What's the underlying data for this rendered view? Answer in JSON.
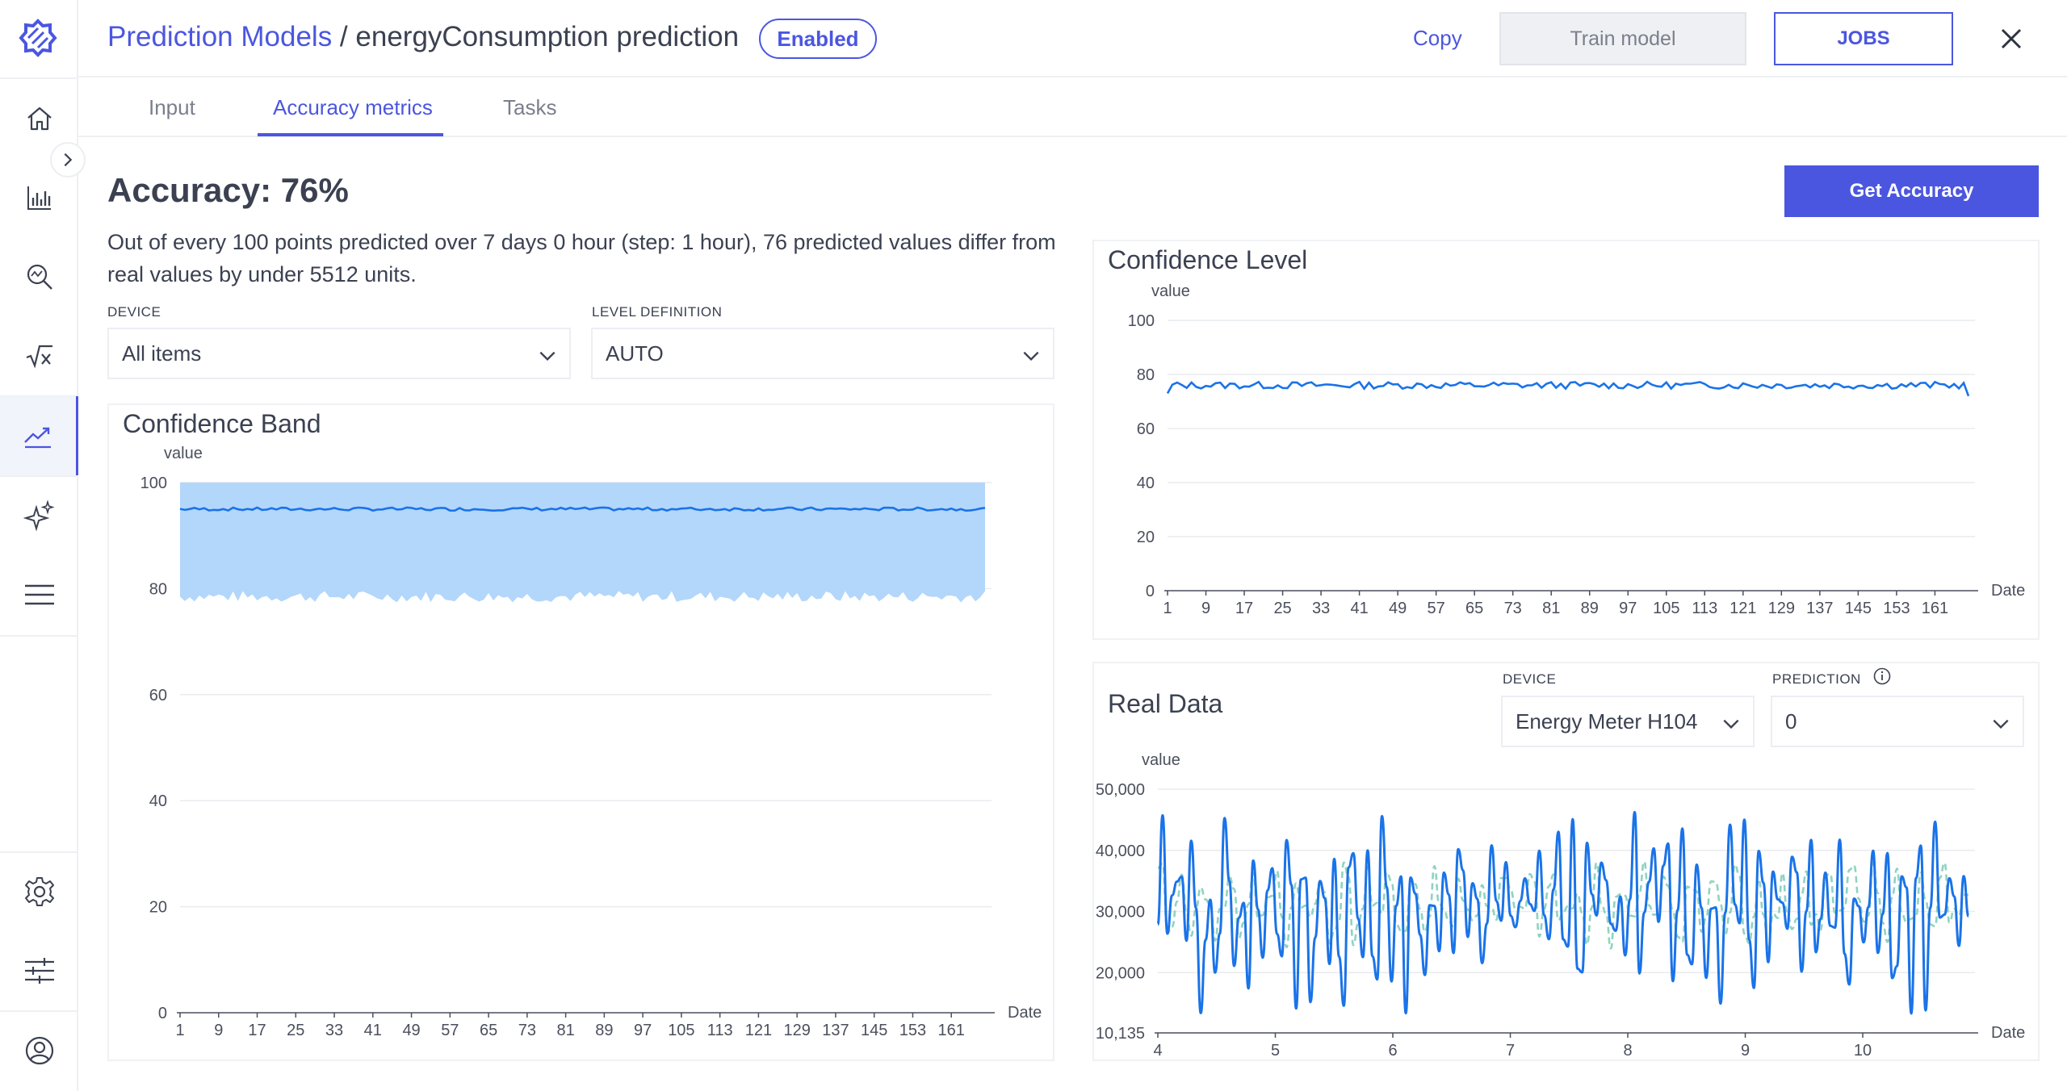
{
  "header": {
    "breadcrumb_root": "Prediction Models",
    "breadcrumb_separator": " / ",
    "breadcrumb_current": "energyConsumption prediction",
    "status_badge": "Enabled",
    "copy_label": "Copy",
    "train_label": "Train model",
    "jobs_label": "JOBS"
  },
  "tabs": [
    {
      "label": "Input"
    },
    {
      "label": "Accuracy metrics"
    },
    {
      "label": "Tasks"
    }
  ],
  "accuracy": {
    "title": "Accuracy: 76%",
    "description": "Out of every 100 points predicted over 7 days 0 hour (step: 1 hour), 76 predicted values differ from real values by under 5512 units.",
    "get_button": "Get Accuracy"
  },
  "filters": {
    "device_label": "DEVICE",
    "device_value": "All items",
    "level_label": "LEVEL DEFINITION",
    "level_value": "AUTO"
  },
  "real_data_filters": {
    "device_label": "DEVICE",
    "device_value": "Energy Meter H104",
    "prediction_label": "PREDICTION",
    "prediction_value": "0"
  },
  "icons": {
    "logo": "gear-logo-icon",
    "nav": [
      "home-icon",
      "bar-chart-icon",
      "search-analytics-icon",
      "formula-icon",
      "trend-icon",
      "sparkle-icon",
      "menu-icon"
    ],
    "bottom": [
      "settings-icon",
      "sliders-icon",
      "user-icon"
    ]
  },
  "colors": {
    "accent": "#4b56e0",
    "line_blue": "#1a73e8",
    "band_fill": "#b3d6fb",
    "predicted_green": "#8fd3c1"
  },
  "chart_data": [
    {
      "type": "area",
      "title": "Confidence Band",
      "ylabel": "value",
      "xlabel": "Date",
      "ylim": [
        0,
        100
      ],
      "yticks": [
        0,
        20,
        40,
        60,
        80,
        100
      ],
      "xticks": [
        1,
        9,
        17,
        25,
        33,
        41,
        49,
        57,
        65,
        73,
        81,
        89,
        97,
        105,
        113,
        121,
        129,
        137,
        145,
        153,
        161
      ],
      "xrange": [
        1,
        168
      ],
      "band_upper": 100,
      "band_lower_mean": 78.5,
      "center_line_mean": 95,
      "grid": true
    },
    {
      "type": "line",
      "title": "Confidence Level",
      "ylabel": "value",
      "xlabel": "Date",
      "ylim": [
        0,
        100
      ],
      "yticks": [
        0,
        20,
        40,
        60,
        80,
        100
      ],
      "xticks": [
        1,
        9,
        17,
        25,
        33,
        41,
        49,
        57,
        65,
        73,
        81,
        89,
        97,
        105,
        113,
        121,
        129,
        137,
        145,
        153,
        161
      ],
      "xrange": [
        1,
        168
      ],
      "line_mean": 76,
      "grid": true
    },
    {
      "type": "line",
      "title": "Real Data",
      "ylabel": "value",
      "xlabel": "Date",
      "ylim": [
        10135,
        50000
      ],
      "yticks": [
        10135,
        20000,
        30000,
        40000,
        50000
      ],
      "ytick_labels": [
        "10,135",
        "20,000",
        "30,000",
        "40,000",
        "50,000"
      ],
      "xticks": [
        4,
        5,
        6,
        7,
        8,
        9,
        10
      ],
      "xrange": [
        4,
        10.9
      ],
      "series": [
        {
          "style": "solid"
        },
        {
          "style": "dashed"
        }
      ],
      "grid": true
    }
  ]
}
